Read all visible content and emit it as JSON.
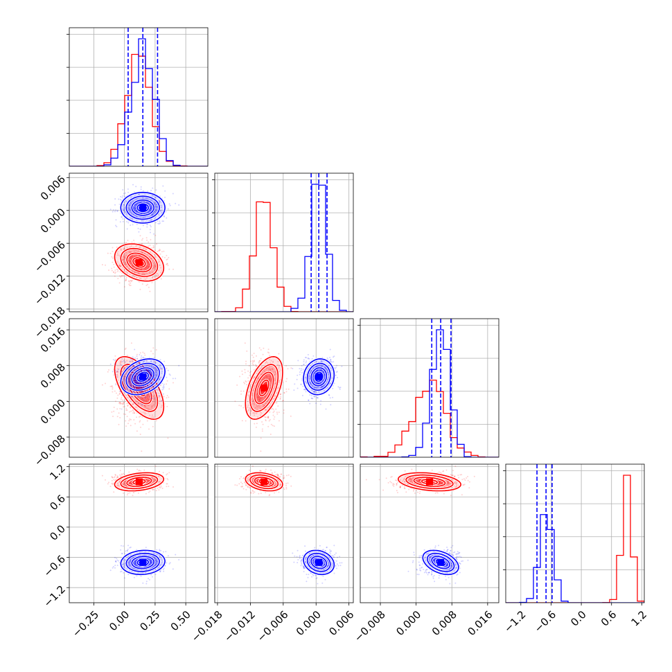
{
  "colors": {
    "series_a": "#ff0000",
    "series_b": "#0000ff",
    "grid": "#b0b0b0"
  },
  "chart_data": {
    "type": "corner",
    "title": "",
    "grid": true,
    "legend": "none",
    "parameters": [
      {
        "ticks": [
          -0.25,
          0.0,
          0.25,
          0.5
        ],
        "tick_labels": [
          "−0.25",
          "0.00",
          "0.25",
          "0.50"
        ],
        "range": [
          -0.45,
          0.68
        ]
      },
      {
        "ticks": [
          -0.018,
          -0.012,
          -0.006,
          0.0,
          0.006
        ],
        "tick_labels": [
          "−0.018",
          "−0.012",
          "−0.006",
          "0.000",
          "0.006"
        ],
        "range": [
          -0.0185,
          0.0068
        ]
      },
      {
        "ticks": [
          -0.008,
          0.0,
          0.008,
          0.016
        ],
        "tick_labels": [
          "−0.008",
          "0.000",
          "0.008",
          "0.016"
        ],
        "range": [
          -0.0125,
          0.0185
        ]
      },
      {
        "ticks": [
          -1.2,
          -0.6,
          0.0,
          0.6,
          1.2
        ],
        "tick_labels": [
          "−1.2",
          "−0.6",
          "0.0",
          "0.6",
          "1.2"
        ],
        "range": [
          -1.5,
          1.25
        ]
      }
    ],
    "series": [
      {
        "color": "#ff0000",
        "mean": [
          0.12,
          -0.0095,
          0.003,
          0.9
        ],
        "std": [
          0.1,
          0.0017,
          0.0035,
          0.09
        ],
        "corr": [
          [
            1.0,
            -0.3,
            -0.6,
            0.3
          ],
          [
            -0.3,
            1.0,
            0.5,
            -0.3
          ],
          [
            -0.6,
            0.5,
            1.0,
            -0.3
          ],
          [
            0.3,
            -0.3,
            -0.3,
            1.0
          ]
        ]
      },
      {
        "color": "#0000ff",
        "mean": [
          0.15,
          0.0005,
          0.0055,
          -0.7
        ],
        "std": [
          0.09,
          0.0014,
          0.002,
          0.12
        ],
        "corr": [
          [
            1.0,
            0.0,
            0.3,
            0.1
          ],
          [
            0.0,
            1.0,
            0.1,
            -0.2
          ],
          [
            0.3,
            0.1,
            1.0,
            -0.4
          ],
          [
            0.1,
            -0.2,
            -0.4,
            1.0
          ]
        ]
      }
    ],
    "quantiles": [
      {
        "series": "#0000ff",
        "values": [
          0.03,
          0.15,
          0.27
        ]
      },
      {
        "series": "#0000ff",
        "values": [
          -0.0009,
          0.0005,
          0.002
        ]
      },
      {
        "series": "#0000ff",
        "values": [
          0.0035,
          0.0055,
          0.0078
        ]
      },
      {
        "series": "#0000ff",
        "values": [
          -0.88,
          -0.7,
          -0.58
        ]
      }
    ]
  }
}
